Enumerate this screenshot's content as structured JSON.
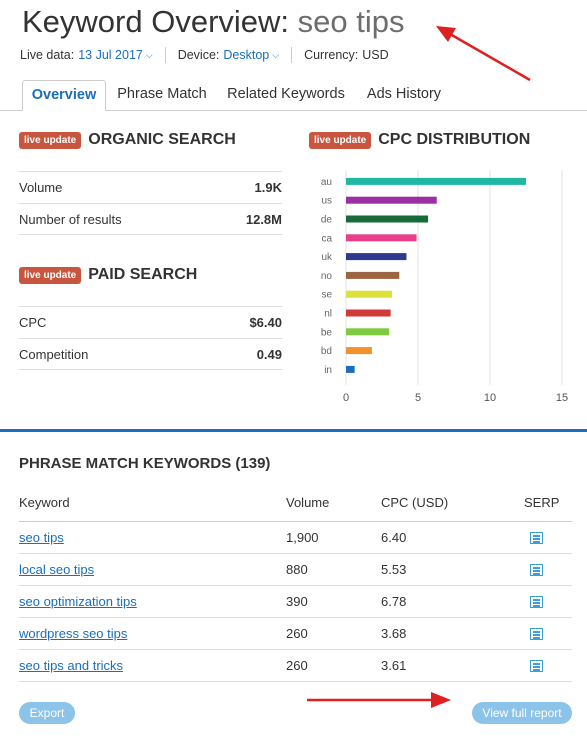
{
  "header": {
    "title_prefix": "Keyword Overview:",
    "keyword": "seo tips"
  },
  "meta": {
    "live_data_label": "Live data:",
    "live_data_value": "13 Jul 2017",
    "device_label": "Device:",
    "device_value": "Desktop",
    "currency_label": "Currency:",
    "currency_value": "USD"
  },
  "tabs": [
    {
      "label": "Overview",
      "active": true
    },
    {
      "label": "Phrase Match",
      "active": false
    },
    {
      "label": "Related Keywords",
      "active": false
    },
    {
      "label": "Ads History",
      "active": false
    }
  ],
  "badge_label": "live update",
  "organic": {
    "title": "ORGANIC SEARCH",
    "rows": [
      {
        "label": "Volume",
        "value": "1.9K"
      },
      {
        "label": "Number of results",
        "value": "12.8M"
      }
    ]
  },
  "paid": {
    "title": "PAID SEARCH",
    "rows": [
      {
        "label": "CPC",
        "value": "$6.40"
      },
      {
        "label": "Competition",
        "value": "0.49"
      }
    ]
  },
  "cpc_distribution": {
    "title": "CPC DISTRIBUTION"
  },
  "chart_data": {
    "type": "bar",
    "orientation": "horizontal",
    "title": "CPC DISTRIBUTION",
    "categories": [
      "au",
      "us",
      "de",
      "ca",
      "uk",
      "no",
      "se",
      "nl",
      "be",
      "bd",
      "in"
    ],
    "values": [
      12.5,
      6.3,
      5.7,
      4.9,
      4.2,
      3.7,
      3.2,
      3.1,
      3.0,
      1.8,
      0.6
    ],
    "colors": [
      "#1eb8a5",
      "#9b2fa5",
      "#156b3a",
      "#e83e8c",
      "#2f3a8f",
      "#9c6440",
      "#dbe03a",
      "#d03a3a",
      "#7fcb3f",
      "#f2922a",
      "#1a6ebd"
    ],
    "xlim": [
      0,
      15
    ],
    "xticks": [
      0,
      5,
      10,
      15
    ],
    "grid": true
  },
  "phrase_match": {
    "title": "PHRASE MATCH KEYWORDS (139)",
    "columns": [
      "Keyword",
      "Volume",
      "CPC (USD)",
      "SERP"
    ],
    "rows": [
      {
        "keyword": "seo tips",
        "volume": "1,900",
        "cpc": "6.40"
      },
      {
        "keyword": "local seo tips",
        "volume": "880",
        "cpc": "5.53"
      },
      {
        "keyword": "seo optimization tips",
        "volume": "390",
        "cpc": "6.78"
      },
      {
        "keyword": "wordpress seo tips",
        "volume": "260",
        "cpc": "3.68"
      },
      {
        "keyword": "seo tips and tricks",
        "volume": "260",
        "cpc": "3.61"
      }
    ]
  },
  "buttons": {
    "export": "Export",
    "view_full_report": "View full report"
  }
}
